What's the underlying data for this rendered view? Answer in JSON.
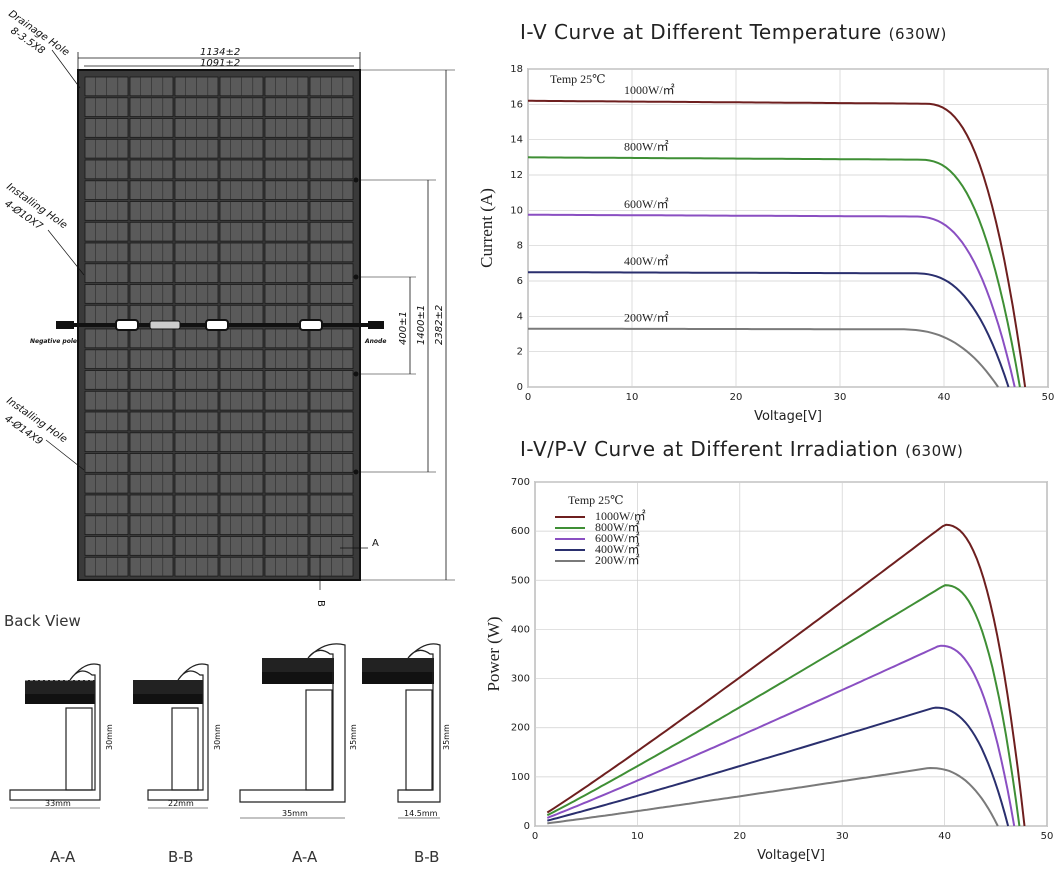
{
  "drawing": {
    "drainage_label": "Drainage Hole",
    "drainage_spec": "8-3.5X8",
    "installing_label_1": "Installing Hole",
    "installing_spec_1": "4-Ø10X7",
    "installing_label_2": "Installing Hole",
    "installing_spec_2": "4-Ø14X9",
    "width_outer": "1134±2",
    "width_inner": "1091±2",
    "dim_400": "400±1",
    "dim_1400": "1400±1",
    "dim_2382": "2382±2",
    "negative_pole": "Negative pole",
    "anode": "Anode",
    "section_marker_a": "A",
    "section_marker_b": "B",
    "back_view": "Back View"
  },
  "sections": [
    {
      "label": "A-A",
      "width_dim": "33mm",
      "height_dim": "30mm"
    },
    {
      "label": "B-B",
      "width_dim": "22mm",
      "height_dim": "30mm"
    },
    {
      "label": "A-A",
      "width_dim": "35mm",
      "height_dim": "35mm"
    },
    {
      "label": "B-B",
      "width_dim": "14.5mm",
      "height_dim": "35mm"
    }
  ],
  "chart_data": [
    {
      "type": "line",
      "title": "I-V Curve at Different Temperature",
      "title_suffix": "(630W)",
      "xlabel": "Voltage[V]",
      "ylabel": "Current (A)",
      "xlim": [
        0,
        50
      ],
      "ylim": [
        0,
        18
      ],
      "xticks": [
        0,
        10,
        20,
        30,
        40,
        50
      ],
      "yticks": [
        0,
        2,
        4,
        6,
        8,
        10,
        12,
        14,
        16,
        18
      ],
      "annotation": "Temp  25℃",
      "series": [
        {
          "name": "1000W/㎡",
          "color": "#6e1f1f",
          "isc": 16.2,
          "voc": 47.8,
          "knee": 38
        },
        {
          "name": "800W/㎡",
          "color": "#3f8f35",
          "isc": 13.0,
          "voc": 47.3,
          "knee": 37.5
        },
        {
          "name": "600W/㎡",
          "color": "#8a4fc2",
          "isc": 9.75,
          "voc": 46.8,
          "knee": 37
        },
        {
          "name": "400W/㎡",
          "color": "#2a2f6e",
          "isc": 6.5,
          "voc": 46.2,
          "knee": 37
        },
        {
          "name": "200W/㎡",
          "color": "#7a7a7a",
          "isc": 3.3,
          "voc": 45.2,
          "knee": 35.5
        }
      ]
    },
    {
      "type": "line",
      "title": "I-V/P-V Curve at Different Irradiation",
      "title_suffix": "(630W)",
      "xlabel": "Voltage[V]",
      "ylabel": "Power (W)",
      "xlim": [
        0,
        50
      ],
      "ylim": [
        0,
        700
      ],
      "xticks": [
        0,
        10,
        20,
        30,
        40,
        50
      ],
      "yticks": [
        0,
        100,
        200,
        300,
        400,
        500,
        600,
        700
      ],
      "annotation": "Temp  25℃",
      "series": [
        {
          "name": "1000W/㎡",
          "color": "#6e1f1f",
          "pmax": 613,
          "vmp": 40,
          "voc": 47.8
        },
        {
          "name": "800W/㎡",
          "color": "#3f8f35",
          "pmax": 490,
          "vmp": 40,
          "voc": 47.3
        },
        {
          "name": "600W/㎡",
          "color": "#8a4fc2",
          "pmax": 367,
          "vmp": 39.5,
          "voc": 46.8
        },
        {
          "name": "400W/㎡",
          "color": "#2a2f6e",
          "pmax": 241,
          "vmp": 39,
          "voc": 46.2
        },
        {
          "name": "200W/㎡",
          "color": "#7a7a7a",
          "pmax": 118,
          "vmp": 38.5,
          "voc": 45.2
        }
      ]
    }
  ]
}
